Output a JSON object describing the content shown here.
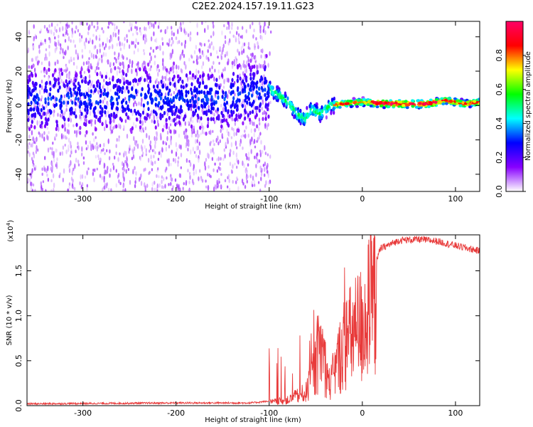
{
  "figure_title": "C2E2.2024.157.19.11.G23",
  "chart_data": [
    {
      "type": "heatmap",
      "title": "C2E2.2024.157.19.11.G23",
      "xlabel": "Height of straight line (km)",
      "ylabel": "Frequency (Hz)",
      "xlim": [
        -360,
        126
      ],
      "ylim": [
        -50,
        49
      ],
      "xticks": [
        -300,
        -200,
        -100,
        0,
        100
      ],
      "xtick_labels": [
        "-300",
        "-200",
        "-100",
        "0",
        "100"
      ],
      "yticks": [
        -40,
        -20,
        0,
        20,
        40
      ],
      "ytick_labels": [
        "-40",
        "-20",
        "0",
        "20",
        "40"
      ],
      "ridge_frequency_points": [
        {
          "x": -360,
          "y": 3
        },
        {
          "x": -250,
          "y": 4
        },
        {
          "x": -150,
          "y": 4
        },
        {
          "x": -120,
          "y": 7
        },
        {
          "x": -100,
          "y": 10
        },
        {
          "x": -90,
          "y": 6
        },
        {
          "x": -80,
          "y": 2
        },
        {
          "x": -70,
          "y": -5
        },
        {
          "x": -62,
          "y": -8
        },
        {
          "x": -55,
          "y": -2
        },
        {
          "x": -45,
          "y": -5
        },
        {
          "x": -35,
          "y": 0
        },
        {
          "x": -20,
          "y": 1
        },
        {
          "x": 0,
          "y": 2
        },
        {
          "x": 30,
          "y": 1
        },
        {
          "x": 70,
          "y": 1
        },
        {
          "x": 90,
          "y": 3
        },
        {
          "x": 110,
          "y": 1
        },
        {
          "x": 126,
          "y": 2
        }
      ],
      "colorbar": {
        "label": "Normalized spectral amplitude",
        "range": [
          0.0,
          1.0
        ],
        "ticks": [
          0.0,
          0.2,
          0.4,
          0.6,
          0.8
        ],
        "tick_labels": [
          "0.0",
          "0.2",
          "0.4",
          "0.6",
          "0.8"
        ],
        "colors": [
          "#ffffff",
          "#8800ff",
          "#0000ff",
          "#00ffff",
          "#00ff00",
          "#ffff00",
          "#ff0000",
          "#ff0066"
        ]
      }
    },
    {
      "type": "line",
      "xlabel": "Height of straight line (km)",
      "ylabel": "SNR (10 * v/v)",
      "ylabel_multiplier": "(x10",
      "ylabel_multiplier_exp": "4",
      "ylabel_multiplier_close": ")",
      "xlim": [
        -360,
        126
      ],
      "ylim": [
        0,
        1.9
      ],
      "xticks": [
        -300,
        -200,
        -100,
        0,
        100
      ],
      "xtick_labels": [
        "-300",
        "-200",
        "-100",
        "0",
        "100"
      ],
      "yticks": [
        0.0,
        0.5,
        1.0,
        1.5
      ],
      "ytick_labels": [
        "0.0",
        "0.5",
        "1.0",
        "1.5"
      ],
      "line_color": "#e83a3a",
      "series": [
        {
          "name": "SNR",
          "envelope": [
            {
              "x": -360,
              "y": 0.02
            },
            {
              "x": -200,
              "y": 0.03
            },
            {
              "x": -120,
              "y": 0.03
            },
            {
              "x": -100,
              "y": 0.05
            },
            {
              "x": -80,
              "y": 0.08
            },
            {
              "x": -60,
              "y": 0.2
            },
            {
              "x": -50,
              "y": 0.6
            },
            {
              "x": -45,
              "y": 0.9
            },
            {
              "x": -35,
              "y": 0.3
            },
            {
              "x": -20,
              "y": 0.9
            },
            {
              "x": -10,
              "y": 1.05
            },
            {
              "x": 0,
              "y": 1.2
            },
            {
              "x": 10,
              "y": 1.5
            },
            {
              "x": 20,
              "y": 1.75
            },
            {
              "x": 40,
              "y": 1.84
            },
            {
              "x": 60,
              "y": 1.85
            },
            {
              "x": 80,
              "y": 1.83
            },
            {
              "x": 100,
              "y": 1.78
            },
            {
              "x": 126,
              "y": 1.72
            }
          ]
        }
      ]
    }
  ]
}
